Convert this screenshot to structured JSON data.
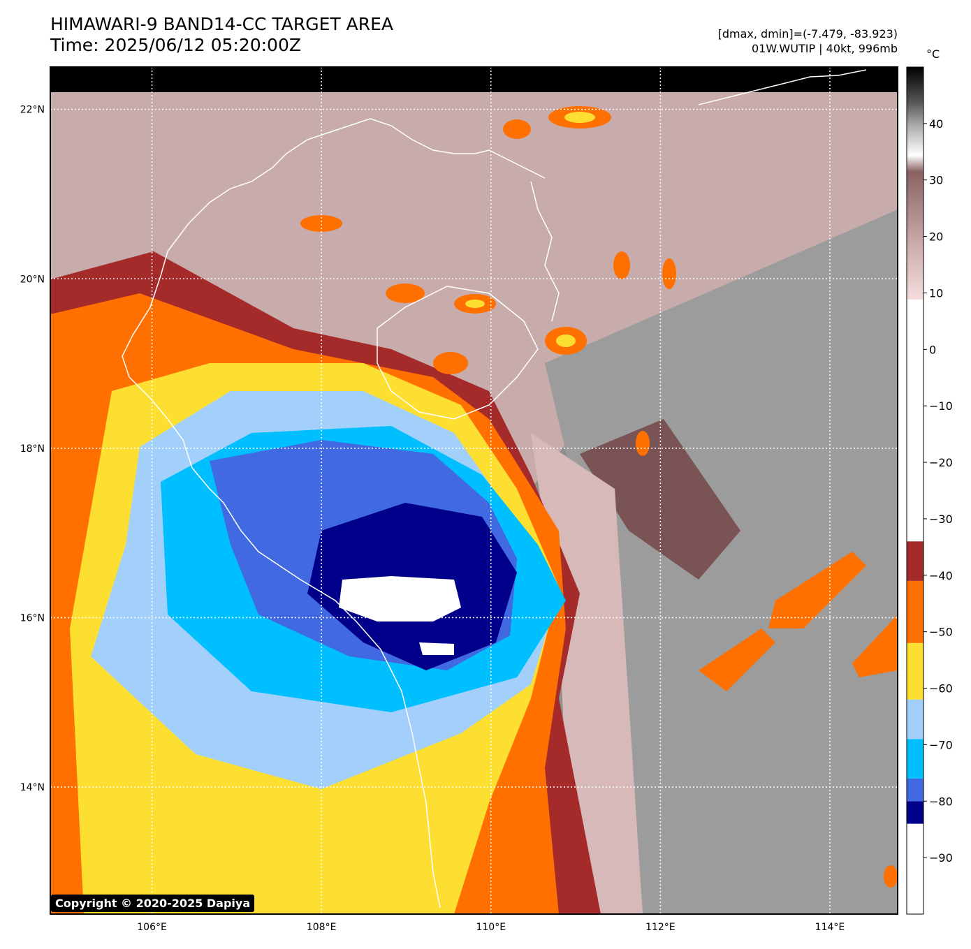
{
  "header": {
    "title_line1": "HIMAWARI-9 BAND14-CC TARGET AREA",
    "title_line2": "Time: 2025/06/12 05:20:00Z",
    "info_line1": "[dmax, dmin]=(-7.479, -83.923)",
    "info_line2": "01W.WUTIP | 40kt, 996mb"
  },
  "map": {
    "lon_range": [
      104.8,
      114.8
    ],
    "lat_range": [
      12.5,
      22.5
    ],
    "lon_ticks": [
      {
        "value": 106,
        "label": "106°E"
      },
      {
        "value": 108,
        "label": "108°E"
      },
      {
        "value": 110,
        "label": "110°E"
      },
      {
        "value": 112,
        "label": "112°E"
      },
      {
        "value": 114,
        "label": "114°E"
      }
    ],
    "lat_ticks": [
      {
        "value": 22,
        "label": "22°N"
      },
      {
        "value": 20,
        "label": "20°N"
      },
      {
        "value": 18,
        "label": "18°N"
      },
      {
        "value": 16,
        "label": "16°N"
      },
      {
        "value": 14,
        "label": "14°N"
      }
    ],
    "grid": "dotted white",
    "coastline_color": "#ffffff"
  },
  "colorbar": {
    "unit": "°C",
    "range": [
      -100,
      50
    ],
    "ticks": [
      {
        "value": 40,
        "label": "40"
      },
      {
        "value": 30,
        "label": "30"
      },
      {
        "value": 20,
        "label": "20"
      },
      {
        "value": 10,
        "label": "10"
      },
      {
        "value": 0,
        "label": "0"
      },
      {
        "value": -10,
        "label": "−10"
      },
      {
        "value": -20,
        "label": "−20"
      },
      {
        "value": -30,
        "label": "−30"
      },
      {
        "value": -40,
        "label": "−40"
      },
      {
        "value": -50,
        "label": "−50"
      },
      {
        "value": -60,
        "label": "−60"
      },
      {
        "value": -70,
        "label": "−70"
      },
      {
        "value": -80,
        "label": "−80"
      },
      {
        "value": -90,
        "label": "−90"
      }
    ],
    "bands": [
      {
        "from": -100,
        "to": -84,
        "color": "#ffffff"
      },
      {
        "from": -84,
        "to": -80,
        "color": "#00008b"
      },
      {
        "from": -80,
        "to": -76,
        "color": "#4169e1"
      },
      {
        "from": -76,
        "to": -69,
        "color": "#00bfff"
      },
      {
        "from": -69,
        "to": -62,
        "color": "#a2d0fb"
      },
      {
        "from": -62,
        "to": -52,
        "color": "#fddf32"
      },
      {
        "from": -52,
        "to": -41,
        "color": "#ff7000"
      },
      {
        "from": -41,
        "to": -34,
        "color": "#a52a2a"
      }
    ]
  },
  "copyright": "Copyright © 2020-2025 Dapiya"
}
